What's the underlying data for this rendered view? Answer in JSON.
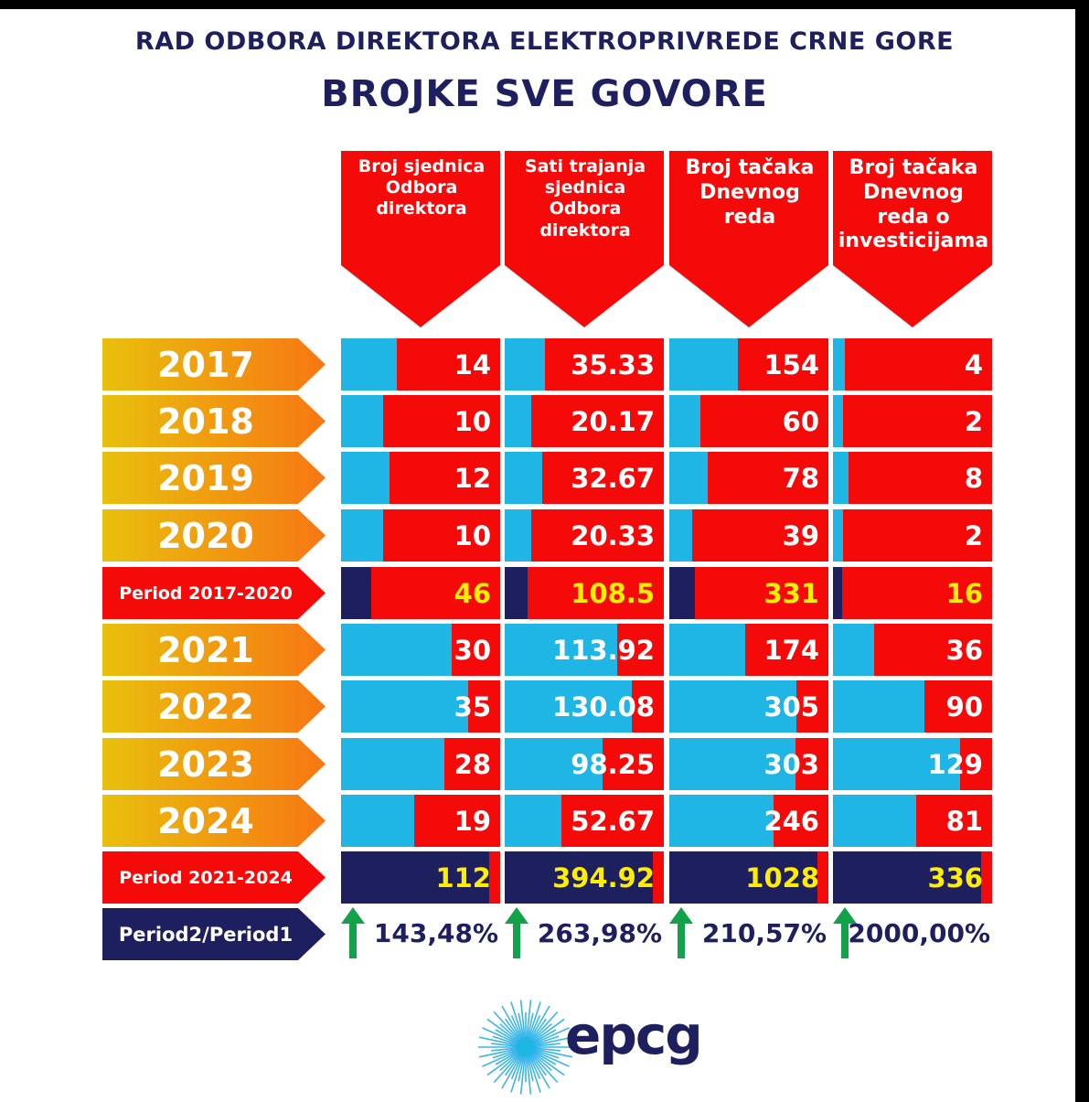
{
  "title": "RAD ODBORA DIREKTORA ELEKTROPRIVREDE CRNE GORE",
  "subtitle": "BROJKE SVE GOVORE",
  "colors": {
    "red": "#f50a0a",
    "blue": "#1fb6e6",
    "navy": "#1e1f5e",
    "yellow": "#ffee00",
    "arrow_green": "#12a24a"
  },
  "chart_data": {
    "type": "table",
    "columns": [
      "Broj sjednica Odbora direktora",
      "Sati trajanja sjednica Odbora direktora",
      "Broj tačaka Dnevnog reda",
      "Broj tačaka Dnevnog reda o investicijama"
    ],
    "rows": [
      {
        "label": "2017",
        "kind": "year",
        "values": [
          "14",
          "35.33",
          "154",
          "4"
        ]
      },
      {
        "label": "2018",
        "kind": "year",
        "values": [
          "10",
          "20.17",
          "60",
          "2"
        ]
      },
      {
        "label": "2019",
        "kind": "year",
        "values": [
          "12",
          "32.67",
          "78",
          "8"
        ]
      },
      {
        "label": "2020",
        "kind": "year",
        "values": [
          "10",
          "20.33",
          "39",
          "2"
        ]
      },
      {
        "label": "Period 2017-2020",
        "kind": "period",
        "values": [
          "46",
          "108.5",
          "331",
          "16"
        ]
      },
      {
        "label": "2021",
        "kind": "year",
        "values": [
          "30",
          "113.92",
          "174",
          "36"
        ]
      },
      {
        "label": "2022",
        "kind": "year",
        "values": [
          "35",
          "130.08",
          "305",
          "90"
        ]
      },
      {
        "label": "2023",
        "kind": "year",
        "values": [
          "28",
          "98.25",
          "303",
          "129"
        ]
      },
      {
        "label": "2024",
        "kind": "year",
        "values": [
          "19",
          "52.67",
          "246",
          "81"
        ]
      },
      {
        "label": "Period 2021-2024",
        "kind": "period",
        "values": [
          "112",
          "394.92",
          "1028",
          "336"
        ]
      }
    ],
    "ratio_label": "Period2/Period1",
    "ratios": [
      "143,48%",
      "263,98%",
      "210,57%",
      "2000,00%"
    ]
  },
  "logo": {
    "text": "epcg"
  }
}
